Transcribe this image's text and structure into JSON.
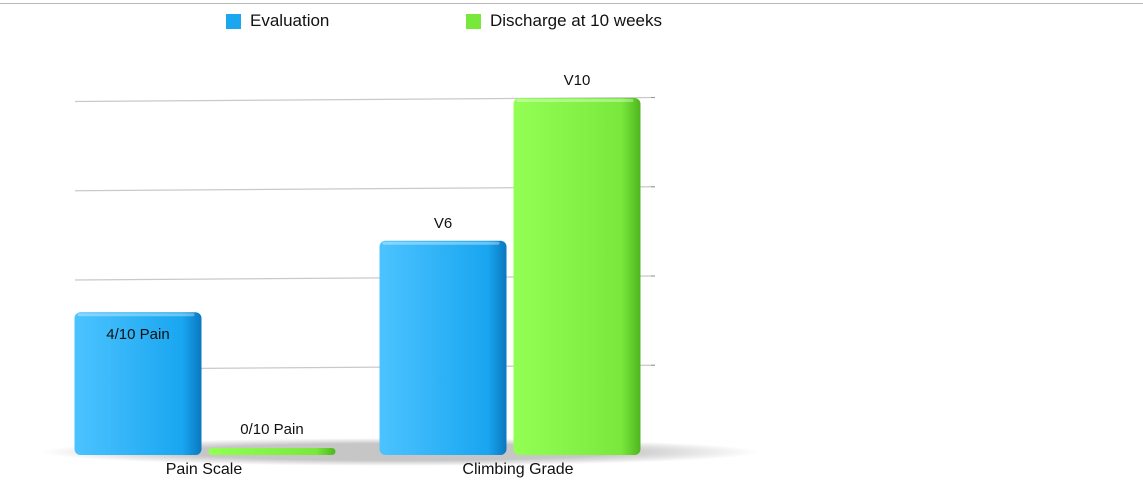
{
  "colors": {
    "evaluation": "#1aa7f0",
    "discharge": "#79e83c",
    "grid": "#c9c9c9"
  },
  "chart_data": {
    "type": "bar",
    "categories": [
      "Pain Scale",
      "Climbing  Grade"
    ],
    "series": [
      {
        "name": "Evaluation",
        "values": [
          4,
          6
        ],
        "labels": [
          "4/10 Pain",
          "V6"
        ]
      },
      {
        "name": "Discharge at 10 weeks",
        "values": [
          0,
          10
        ],
        "labels": [
          "0/10 Pain",
          "V10"
        ]
      }
    ],
    "ylim": [
      0,
      10
    ],
    "grid": true,
    "legend_position": "top"
  }
}
